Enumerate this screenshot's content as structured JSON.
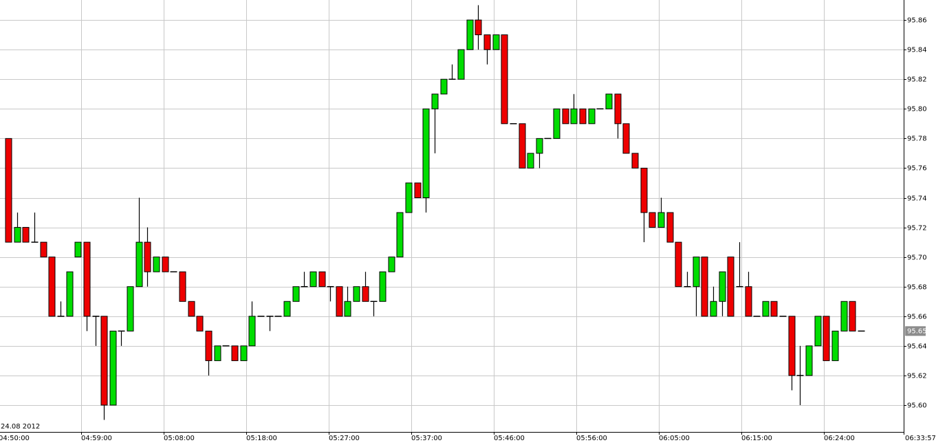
{
  "chart_data": {
    "type": "candlestick",
    "date_label": "24.08 2012",
    "x_labels": [
      "04:50:00",
      "04:59:00",
      "05:08:00",
      "05:18:00",
      "05:27:00",
      "05:37:00",
      "05:46:00",
      "05:56:00",
      "06:05:00",
      "06:15:00",
      "06:24:00",
      "06:33:57"
    ],
    "ylim": [
      95.5819,
      95.8735
    ],
    "yticks": [
      {
        "value": 95.6,
        "label": "95.60"
      },
      95.62,
      95.64,
      95.66,
      95.68,
      {
        "value": 95.7,
        "label": "95.70"
      },
      95.72,
      95.74,
      95.76,
      95.78,
      {
        "value": 95.8,
        "label": "95.80"
      },
      95.82,
      95.84,
      95.86
    ],
    "grid": true,
    "up_color": "#00dd00",
    "down_color": "#ee0000",
    "last_price": 95.65,
    "open": [
      95.78,
      95.71,
      95.72,
      95.71,
      95.71,
      95.7,
      95.66,
      95.66,
      95.7,
      95.71,
      95.66,
      95.66,
      95.6,
      95.65,
      95.65,
      95.68,
      95.71,
      95.69,
      95.7,
      95.69,
      95.69,
      95.67,
      95.66,
      95.65,
      95.63,
      95.64,
      95.64,
      95.63,
      95.64,
      95.66,
      95.66,
      95.66,
      95.66,
      95.67,
      95.68,
      95.68,
      95.69,
      95.68,
      95.68,
      95.66,
      95.67,
      95.68,
      95.67,
      95.67,
      95.69,
      95.7,
      95.73,
      95.75,
      95.74,
      95.8,
      95.81,
      95.82,
      95.82,
      95.84,
      95.86,
      95.85,
      95.84,
      95.85,
      95.79,
      95.79,
      95.76,
      95.77,
      95.78,
      95.78,
      95.8,
      95.79,
      95.8,
      95.79,
      95.8,
      95.8,
      95.81,
      95.79,
      95.77,
      95.76,
      95.73,
      95.72,
      95.73,
      95.71,
      95.68,
      95.68,
      95.7,
      95.66,
      95.67,
      95.7,
      95.68,
      95.68,
      95.66,
      95.66,
      95.67,
      95.66,
      95.66,
      95.62,
      95.62,
      95.64,
      95.66,
      95.63,
      95.65,
      95.67,
      95.65
    ],
    "high": [
      95.78,
      95.73,
      95.72,
      95.73,
      95.71,
      95.7,
      95.67,
      95.69,
      95.71,
      95.71,
      95.66,
      95.66,
      95.65,
      95.65,
      95.68,
      95.74,
      95.72,
      95.7,
      95.7,
      95.69,
      95.69,
      95.67,
      95.66,
      95.65,
      95.64,
      95.64,
      95.64,
      95.64,
      95.67,
      95.66,
      95.66,
      95.66,
      95.67,
      95.68,
      95.69,
      95.69,
      95.69,
      95.68,
      95.68,
      95.68,
      95.68,
      95.69,
      95.67,
      95.69,
      95.7,
      95.73,
      95.75,
      95.75,
      95.8,
      95.81,
      95.82,
      95.83,
      95.84,
      95.86,
      95.87,
      95.85,
      95.85,
      95.85,
      95.79,
      95.79,
      95.77,
      95.78,
      95.78,
      95.8,
      95.8,
      95.81,
      95.8,
      95.8,
      95.8,
      95.81,
      95.81,
      95.79,
      95.77,
      95.76,
      95.73,
      95.74,
      95.73,
      95.71,
      95.69,
      95.7,
      95.7,
      95.68,
      95.69,
      95.7,
      95.71,
      95.69,
      95.66,
      95.67,
      95.67,
      95.66,
      95.66,
      95.64,
      95.64,
      95.66,
      95.66,
      95.65,
      95.67,
      95.67,
      95.65
    ],
    "low": [
      95.71,
      95.71,
      95.71,
      95.71,
      95.7,
      95.66,
      95.66,
      95.66,
      95.7,
      95.65,
      95.64,
      95.59,
      95.6,
      95.64,
      95.65,
      95.68,
      95.68,
      95.69,
      95.69,
      95.69,
      95.67,
      95.66,
      95.65,
      95.62,
      95.63,
      95.64,
      95.63,
      95.63,
      95.64,
      95.66,
      95.65,
      95.66,
      95.66,
      95.67,
      95.68,
      95.68,
      95.68,
      95.67,
      95.66,
      95.66,
      95.67,
      95.67,
      95.66,
      95.67,
      95.69,
      95.7,
      95.73,
      95.74,
      95.73,
      95.77,
      95.81,
      95.82,
      95.82,
      95.84,
      95.84,
      95.83,
      95.84,
      95.79,
      95.79,
      95.76,
      95.76,
      95.76,
      95.78,
      95.78,
      95.79,
      95.79,
      95.79,
      95.79,
      95.8,
      95.8,
      95.78,
      95.77,
      95.76,
      95.71,
      95.72,
      95.72,
      95.71,
      95.68,
      95.68,
      95.66,
      95.66,
      95.66,
      95.66,
      95.66,
      95.68,
      95.66,
      95.66,
      95.66,
      95.66,
      95.66,
      95.61,
      95.6,
      95.62,
      95.64,
      95.63,
      95.63,
      95.65,
      95.65,
      95.65
    ],
    "close": [
      95.71,
      95.72,
      95.71,
      95.71,
      95.7,
      95.66,
      95.66,
      95.69,
      95.71,
      95.66,
      95.66,
      95.6,
      95.65,
      95.65,
      95.68,
      95.71,
      95.69,
      95.7,
      95.69,
      95.69,
      95.67,
      95.66,
      95.65,
      95.63,
      95.64,
      95.64,
      95.63,
      95.64,
      95.66,
      95.66,
      95.66,
      95.66,
      95.67,
      95.68,
      95.68,
      95.69,
      95.68,
      95.68,
      95.66,
      95.67,
      95.68,
      95.67,
      95.67,
      95.69,
      95.7,
      95.73,
      95.75,
      95.74,
      95.8,
      95.81,
      95.82,
      95.82,
      95.84,
      95.86,
      95.85,
      95.84,
      95.85,
      95.79,
      95.79,
      95.76,
      95.77,
      95.78,
      95.78,
      95.8,
      95.79,
      95.8,
      95.79,
      95.8,
      95.8,
      95.81,
      95.79,
      95.77,
      95.76,
      95.73,
      95.72,
      95.73,
      95.71,
      95.68,
      95.68,
      95.7,
      95.66,
      95.67,
      95.69,
      95.66,
      95.68,
      95.66,
      95.66,
      95.67,
      95.66,
      95.66,
      95.62,
      95.62,
      95.64,
      95.66,
      95.63,
      95.65,
      95.67,
      95.65,
      95.65
    ]
  }
}
